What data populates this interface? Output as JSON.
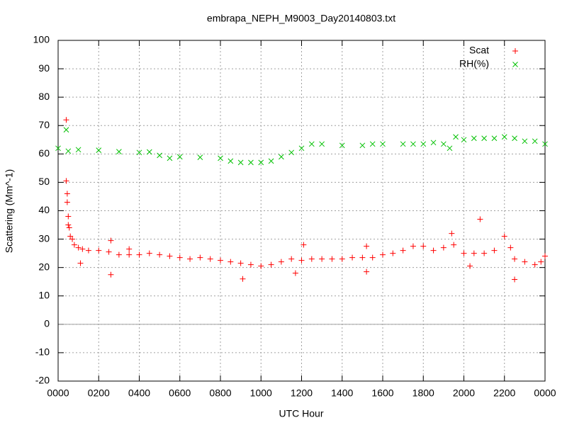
{
  "chart_data": {
    "type": "scatter",
    "title": "embrapa_NEPH_M9003_Day20140803.txt",
    "x_label": "UTC Hour",
    "y_label": "Scattering (Mm^-1)",
    "xlim": [
      0,
      24
    ],
    "ylim": [
      -20,
      100
    ],
    "xticks": [
      {
        "value": 0,
        "label": "0000"
      },
      {
        "value": 2,
        "label": "0200"
      },
      {
        "value": 4,
        "label": "0400"
      },
      {
        "value": 6,
        "label": "0600"
      },
      {
        "value": 8,
        "label": "0800"
      },
      {
        "value": 10,
        "label": "1000"
      },
      {
        "value": 12,
        "label": "1200"
      },
      {
        "value": 14,
        "label": "1400"
      },
      {
        "value": 16,
        "label": "1600"
      },
      {
        "value": 18,
        "label": "1800"
      },
      {
        "value": 20,
        "label": "2000"
      },
      {
        "value": 22,
        "label": "2200"
      },
      {
        "value": 24,
        "label": "0000"
      }
    ],
    "yticks": [
      -20,
      -10,
      0,
      10,
      20,
      30,
      40,
      50,
      60,
      70,
      80,
      90,
      100
    ],
    "grid": true,
    "legend": "top right",
    "series": [
      {
        "name": "Scat",
        "color": "#ff0000",
        "marker": "plus",
        "x": [
          0.4,
          0.4,
          0.45,
          0.45,
          0.5,
          0.5,
          0.55,
          0.6,
          0.7,
          0.8,
          1.0,
          1.1,
          1.2,
          1.5,
          2.0,
          2.5,
          2.6,
          2.6,
          3.0,
          3.5,
          3.5,
          4.0,
          4.5,
          5.0,
          5.5,
          6.0,
          6.5,
          7.0,
          7.5,
          8.0,
          8.5,
          9.0,
          9.1,
          9.5,
          10.0,
          10.5,
          11.0,
          11.5,
          11.7,
          12.0,
          12.1,
          12.5,
          13.0,
          13.5,
          14.0,
          14.5,
          15.0,
          15.2,
          15.2,
          15.5,
          16.0,
          16.5,
          17.0,
          17.5,
          18.0,
          18.5,
          19.0,
          19.4,
          19.5,
          20.0,
          20.3,
          20.5,
          20.8,
          21.0,
          21.5,
          22.0,
          22.3,
          22.5,
          22.5,
          23.0,
          23.5,
          23.8,
          24.0
        ],
        "values": [
          72,
          50.5,
          46,
          43,
          38,
          35,
          34,
          31,
          30,
          28,
          27,
          21.5,
          26.5,
          26,
          26,
          25.5,
          29.5,
          17.5,
          24.5,
          26.5,
          24.5,
          24.5,
          25,
          24.5,
          24,
          23.5,
          23,
          23.5,
          23,
          22.5,
          22,
          21.5,
          16,
          21,
          20.5,
          21,
          22,
          23,
          18,
          22.5,
          28,
          23,
          23,
          23,
          23,
          23.5,
          23.5,
          27.5,
          18.5,
          23.5,
          24.5,
          25,
          26,
          27.5,
          27.5,
          26,
          27,
          32,
          28,
          25,
          20.5,
          25,
          37,
          25,
          26,
          31,
          27,
          23,
          15.8,
          22,
          21,
          22,
          24
        ]
      },
      {
        "name": "RH(%)",
        "color": "#00c000",
        "marker": "cross",
        "x": [
          0,
          0.4,
          0.5,
          1,
          2,
          3,
          4,
          4.5,
          5,
          5.5,
          6,
          7,
          8,
          8.5,
          9,
          9.5,
          10,
          10.5,
          11,
          11.5,
          12,
          12.5,
          13,
          14,
          15,
          15.5,
          16,
          17,
          17.5,
          18,
          18.5,
          19,
          19.3,
          19.6,
          20,
          20.5,
          21,
          21.5,
          22,
          22.5,
          23,
          23.5,
          24
        ],
        "values": [
          62,
          68.5,
          61,
          61.5,
          61.3,
          60.8,
          60.5,
          60.7,
          59.5,
          58.5,
          59,
          58.8,
          58.5,
          57.5,
          57,
          57,
          57,
          57.5,
          59,
          60.5,
          62,
          63.5,
          63.5,
          63,
          63,
          63.5,
          63.5,
          63.5,
          63.5,
          63.5,
          64,
          63.5,
          62,
          66,
          65,
          65.5,
          65.5,
          65.5,
          66,
          65.5,
          64.5,
          64.5,
          63.5
        ]
      }
    ]
  }
}
